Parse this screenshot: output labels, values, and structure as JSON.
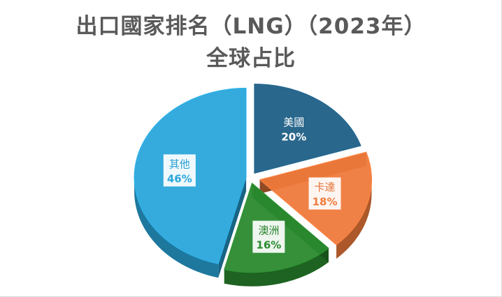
{
  "chart_data": {
    "type": "pie",
    "title": "出口國家排名（LNG）（2023年）",
    "subtitle": "全球占比",
    "slices": [
      {
        "name": "美國",
        "value": 20,
        "label": "20%",
        "color": "#1f5f86"
      },
      {
        "name": "卡達",
        "value": 18,
        "label": "18%",
        "color": "#ef7a3c"
      },
      {
        "name": "澳洲",
        "value": 16,
        "label": "16%",
        "color": "#2a8a2e"
      },
      {
        "name": "其他",
        "value": 46,
        "label": "46%",
        "color": "#2aa6db"
      }
    ],
    "legend": "none",
    "style": "3d-exploded"
  }
}
